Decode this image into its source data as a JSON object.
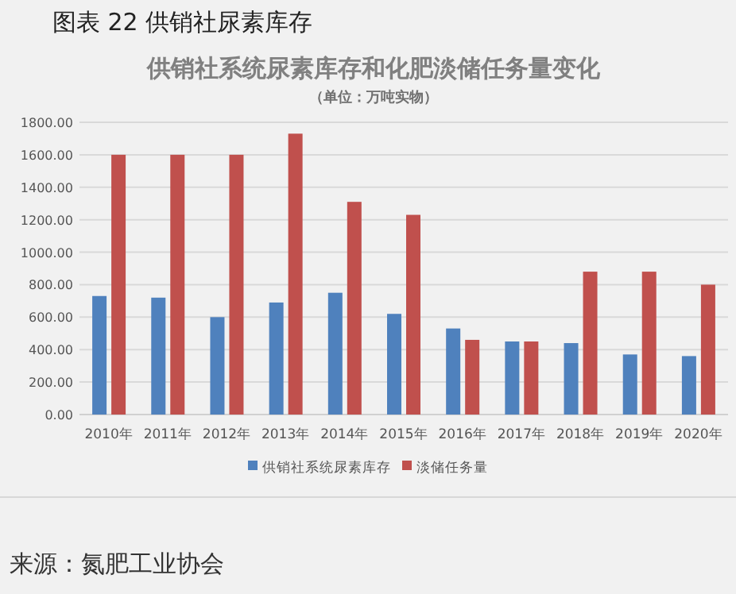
{
  "chart_data": {
    "type": "bar",
    "title": "供销社系统尿素库存和化肥淡储任务量变化",
    "subtitle": "（单位：万吨实物）",
    "annotations": [
      "图表 22 供销社尿素库存",
      "来源：氮肥工业协会"
    ],
    "categories": [
      "2010年",
      "2011年",
      "2012年",
      "2013年",
      "2014年",
      "2015年",
      "2016年",
      "2017年",
      "2018年",
      "2019年",
      "2020年"
    ],
    "series": [
      {
        "name": "供销社系统尿素库存",
        "color": "#4f81bd",
        "values": [
          730,
          720,
          600,
          690,
          750,
          620,
          530,
          450,
          440,
          370,
          360
        ]
      },
      {
        "name": "淡储任务量",
        "color": "#c0504d",
        "values": [
          1600,
          1600,
          1600,
          1730,
          1310,
          1230,
          460,
          450,
          880,
          880,
          800
        ]
      }
    ],
    "ylim": [
      0,
      1800
    ],
    "yticks": [
      {
        "value": 0,
        "label": "0.00"
      },
      {
        "value": 200,
        "label": "200.00"
      },
      {
        "value": 400,
        "label": "400.00"
      },
      {
        "value": 600,
        "label": "600.00"
      },
      {
        "value": 800,
        "label": "800.00"
      },
      {
        "value": 1000,
        "label": "1000.00"
      },
      {
        "value": 1200,
        "label": "1200.00"
      },
      {
        "value": 1400,
        "label": "1400.00"
      },
      {
        "value": 1600,
        "label": "1600.00"
      },
      {
        "value": 1800,
        "label": "1800.00"
      }
    ],
    "grid": "y",
    "legend": "bottom"
  }
}
